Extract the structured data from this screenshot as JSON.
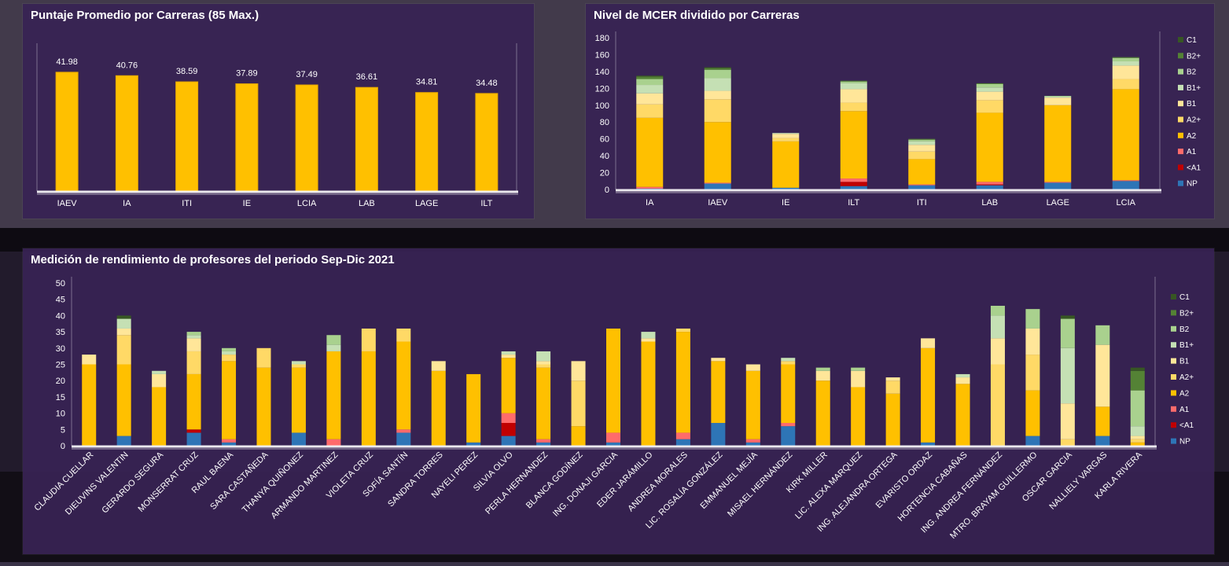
{
  "chart_data": [
    {
      "type": "bar",
      "title": "Puntaje Promedio por Carreras (85 Max.)",
      "categories": [
        "IAEV",
        "IA",
        "ITI",
        "IE",
        "LCIA",
        "LAB",
        "LAGE",
        "ILT"
      ],
      "values": [
        41.98,
        40.76,
        38.59,
        37.89,
        37.49,
        36.61,
        34.81,
        34.48
      ],
      "data_labels": [
        "41.98",
        "40.76",
        "38.59",
        "37.89",
        "37.49",
        "36.61",
        "34.81",
        "34.48"
      ],
      "ylim": [
        0,
        50
      ],
      "colors": {
        "bar": "#FFC000"
      },
      "grid": false
    },
    {
      "type": "bar",
      "stacked": true,
      "title": "Nivel de MCER dividido por Carreras",
      "categories": [
        "IA",
        "IAEV",
        "IE",
        "ILT",
        "ITI",
        "LAB",
        "LAGE",
        "LCIA"
      ],
      "yticks": [
        "0",
        "20",
        "40",
        "60",
        "80",
        "100",
        "120",
        "140",
        "160",
        "180"
      ],
      "ylim": [
        0,
        180
      ],
      "legend_position": "right",
      "series": [
        {
          "name": "NP",
          "color": "#2E75B6",
          "values": [
            1,
            7,
            2,
            4,
            5,
            5,
            8,
            10
          ]
        },
        {
          "name": "<A1",
          "color": "#C00000",
          "values": [
            0,
            0,
            0,
            5,
            0,
            1,
            0,
            0
          ]
        },
        {
          "name": "A1",
          "color": "#FF6B6B",
          "values": [
            2,
            1,
            0,
            4,
            1,
            3,
            1,
            1
          ]
        },
        {
          "name": "A2",
          "color": "#FFC000",
          "values": [
            82,
            72,
            55,
            80,
            30,
            82,
            91,
            108
          ]
        },
        {
          "name": "A2+",
          "color": "#FFD966",
          "values": [
            16,
            27,
            4,
            10,
            9,
            15,
            0,
            12
          ]
        },
        {
          "name": "B1",
          "color": "#FFE699",
          "values": [
            13,
            10,
            5,
            16,
            8,
            10,
            9,
            16
          ]
        },
        {
          "name": "B1+",
          "color": "#C5E0B4",
          "values": [
            10,
            15,
            1,
            7,
            4,
            5,
            1,
            5
          ]
        },
        {
          "name": "B2",
          "color": "#A9D18E",
          "values": [
            7,
            10,
            0,
            2,
            2,
            4,
            1,
            4
          ]
        },
        {
          "name": "B2+",
          "color": "#548235",
          "values": [
            3,
            2,
            0,
            1,
            1,
            1,
            0,
            1
          ]
        },
        {
          "name": "C1",
          "color": "#375623",
          "values": [
            1,
            1,
            0,
            0,
            0,
            0,
            0,
            0
          ]
        }
      ]
    },
    {
      "type": "bar",
      "stacked": true,
      "title": "Medición de rendimiento de profesores del periodo Sep-Dic 2021",
      "categories": [
        "CLAUDIA CUELLAR",
        "DIEUVINS VALENTIN",
        "GERARDO SEGURA",
        "MONSERRAT CRUZ",
        "RAUL BAENA",
        "SARA CASTAÑEDA",
        "THANYA QUIÑONEZ",
        "ARMANDO MARTINEZ",
        "VIOLETA CRUZ",
        "SOFÍA SANTÍN",
        "SANDRA TORRES",
        "NAYELI PEREZ",
        "SILVIA OLVO",
        "PERLA HERNANDEZ",
        "BLANCA GODÍNEZ",
        "ING. DONAJI GARCIA",
        "EDER JARÁMILLO",
        "ANDREA MORALES",
        "LIC. ROSALÍA GONZÁLEZ",
        "EMMANUEL MEJÍA",
        "MISAEL HERNÁNDEZ",
        "KIRK MILLER",
        "LIC. ALEXA MARQUEZ",
        "ING. ALEJANDRA ORTEGA",
        "EVARISTO ORDAZ",
        "HORTENCIA CABAÑAS",
        "ING. ANDREA FERNÁNDEZ",
        "MTRO. BRAYAM GUILLERMO",
        "OSCAR GARCIA",
        "NALLIELY VARGAS",
        "KARLA RIVERA"
      ],
      "yticks": [
        "0",
        "5",
        "10",
        "15",
        "20",
        "25",
        "30",
        "35",
        "40",
        "45",
        "50"
      ],
      "ylim": [
        0,
        50
      ],
      "legend_position": "right",
      "series": [
        {
          "name": "NP",
          "color": "#2E75B6",
          "values": [
            0,
            3,
            0,
            4,
            1,
            0,
            4,
            0,
            0,
            4,
            0,
            1,
            3,
            1,
            0,
            1,
            0,
            2,
            7,
            1,
            6,
            0,
            0,
            0,
            1,
            0,
            0,
            3,
            0,
            3,
            0
          ]
        },
        {
          "name": "<A1",
          "color": "#C00000",
          "values": [
            0,
            0,
            0,
            1,
            0,
            0,
            0,
            0,
            0,
            0,
            0,
            0,
            4,
            0,
            0,
            0,
            0,
            0,
            0,
            0,
            0,
            0,
            0,
            0,
            0,
            0,
            0,
            0,
            0,
            0,
            0
          ]
        },
        {
          "name": "A1",
          "color": "#FF6B6B",
          "values": [
            0,
            0,
            0,
            0,
            1,
            0,
            0,
            2,
            0,
            1,
            0,
            0,
            3,
            1,
            0,
            3,
            0,
            2,
            0,
            1,
            1,
            0,
            0,
            0,
            0,
            0,
            0,
            0,
            0,
            0,
            0
          ]
        },
        {
          "name": "A2",
          "color": "#FFC000",
          "values": [
            25,
            22,
            18,
            17,
            24,
            24,
            20,
            27,
            29,
            27,
            23,
            21,
            17,
            22,
            6,
            32,
            32,
            31,
            19,
            21,
            18,
            20,
            18,
            16,
            29,
            19,
            0,
            14,
            0,
            9,
            1
          ]
        },
        {
          "name": "A2+",
          "color": "#FFD966",
          "values": [
            0,
            9,
            0,
            7,
            2,
            6,
            1,
            0,
            7,
            4,
            0,
            0,
            0,
            1,
            14,
            0,
            0,
            1,
            0,
            0,
            1,
            0,
            0,
            4,
            0,
            0,
            25,
            11,
            2,
            0,
            1
          ]
        },
        {
          "name": "B1",
          "color": "#FFE699",
          "values": [
            3,
            2,
            4,
            4,
            0,
            0,
            0,
            0,
            0,
            0,
            3,
            0,
            1,
            1,
            6,
            0,
            1,
            0,
            1,
            2,
            0,
            3,
            5,
            1,
            3,
            2,
            8,
            8,
            11,
            19,
            1
          ]
        },
        {
          "name": "B1+",
          "color": "#C5E0B4",
          "values": [
            0,
            3,
            1,
            1,
            1,
            0,
            1,
            2,
            0,
            0,
            0,
            0,
            1,
            3,
            0,
            0,
            2,
            0,
            0,
            0,
            1,
            0,
            0,
            0,
            0,
            1,
            7,
            0,
            17,
            0,
            3
          ]
        },
        {
          "name": "B2",
          "color": "#A9D18E",
          "values": [
            0,
            0,
            0,
            1,
            1,
            0,
            0,
            3,
            0,
            0,
            0,
            0,
            0,
            0,
            0,
            0,
            0,
            0,
            0,
            0,
            0,
            1,
            1,
            0,
            0,
            0,
            3,
            6,
            9,
            6,
            11
          ]
        },
        {
          "name": "B2+",
          "color": "#548235",
          "values": [
            0,
            0,
            0,
            0,
            0,
            0,
            0,
            0,
            0,
            0,
            0,
            0,
            0,
            0,
            0,
            0,
            0,
            0,
            0,
            0,
            0,
            0,
            0,
            0,
            0,
            0,
            0,
            0,
            0,
            0,
            6
          ]
        },
        {
          "name": "C1",
          "color": "#375623",
          "values": [
            0,
            1,
            0,
            0,
            0,
            0,
            0,
            0,
            0,
            0,
            0,
            0,
            0,
            0,
            0,
            0,
            0,
            0,
            0,
            0,
            0,
            0,
            0,
            0,
            0,
            0,
            0,
            0,
            1,
            0,
            1
          ]
        }
      ]
    }
  ]
}
